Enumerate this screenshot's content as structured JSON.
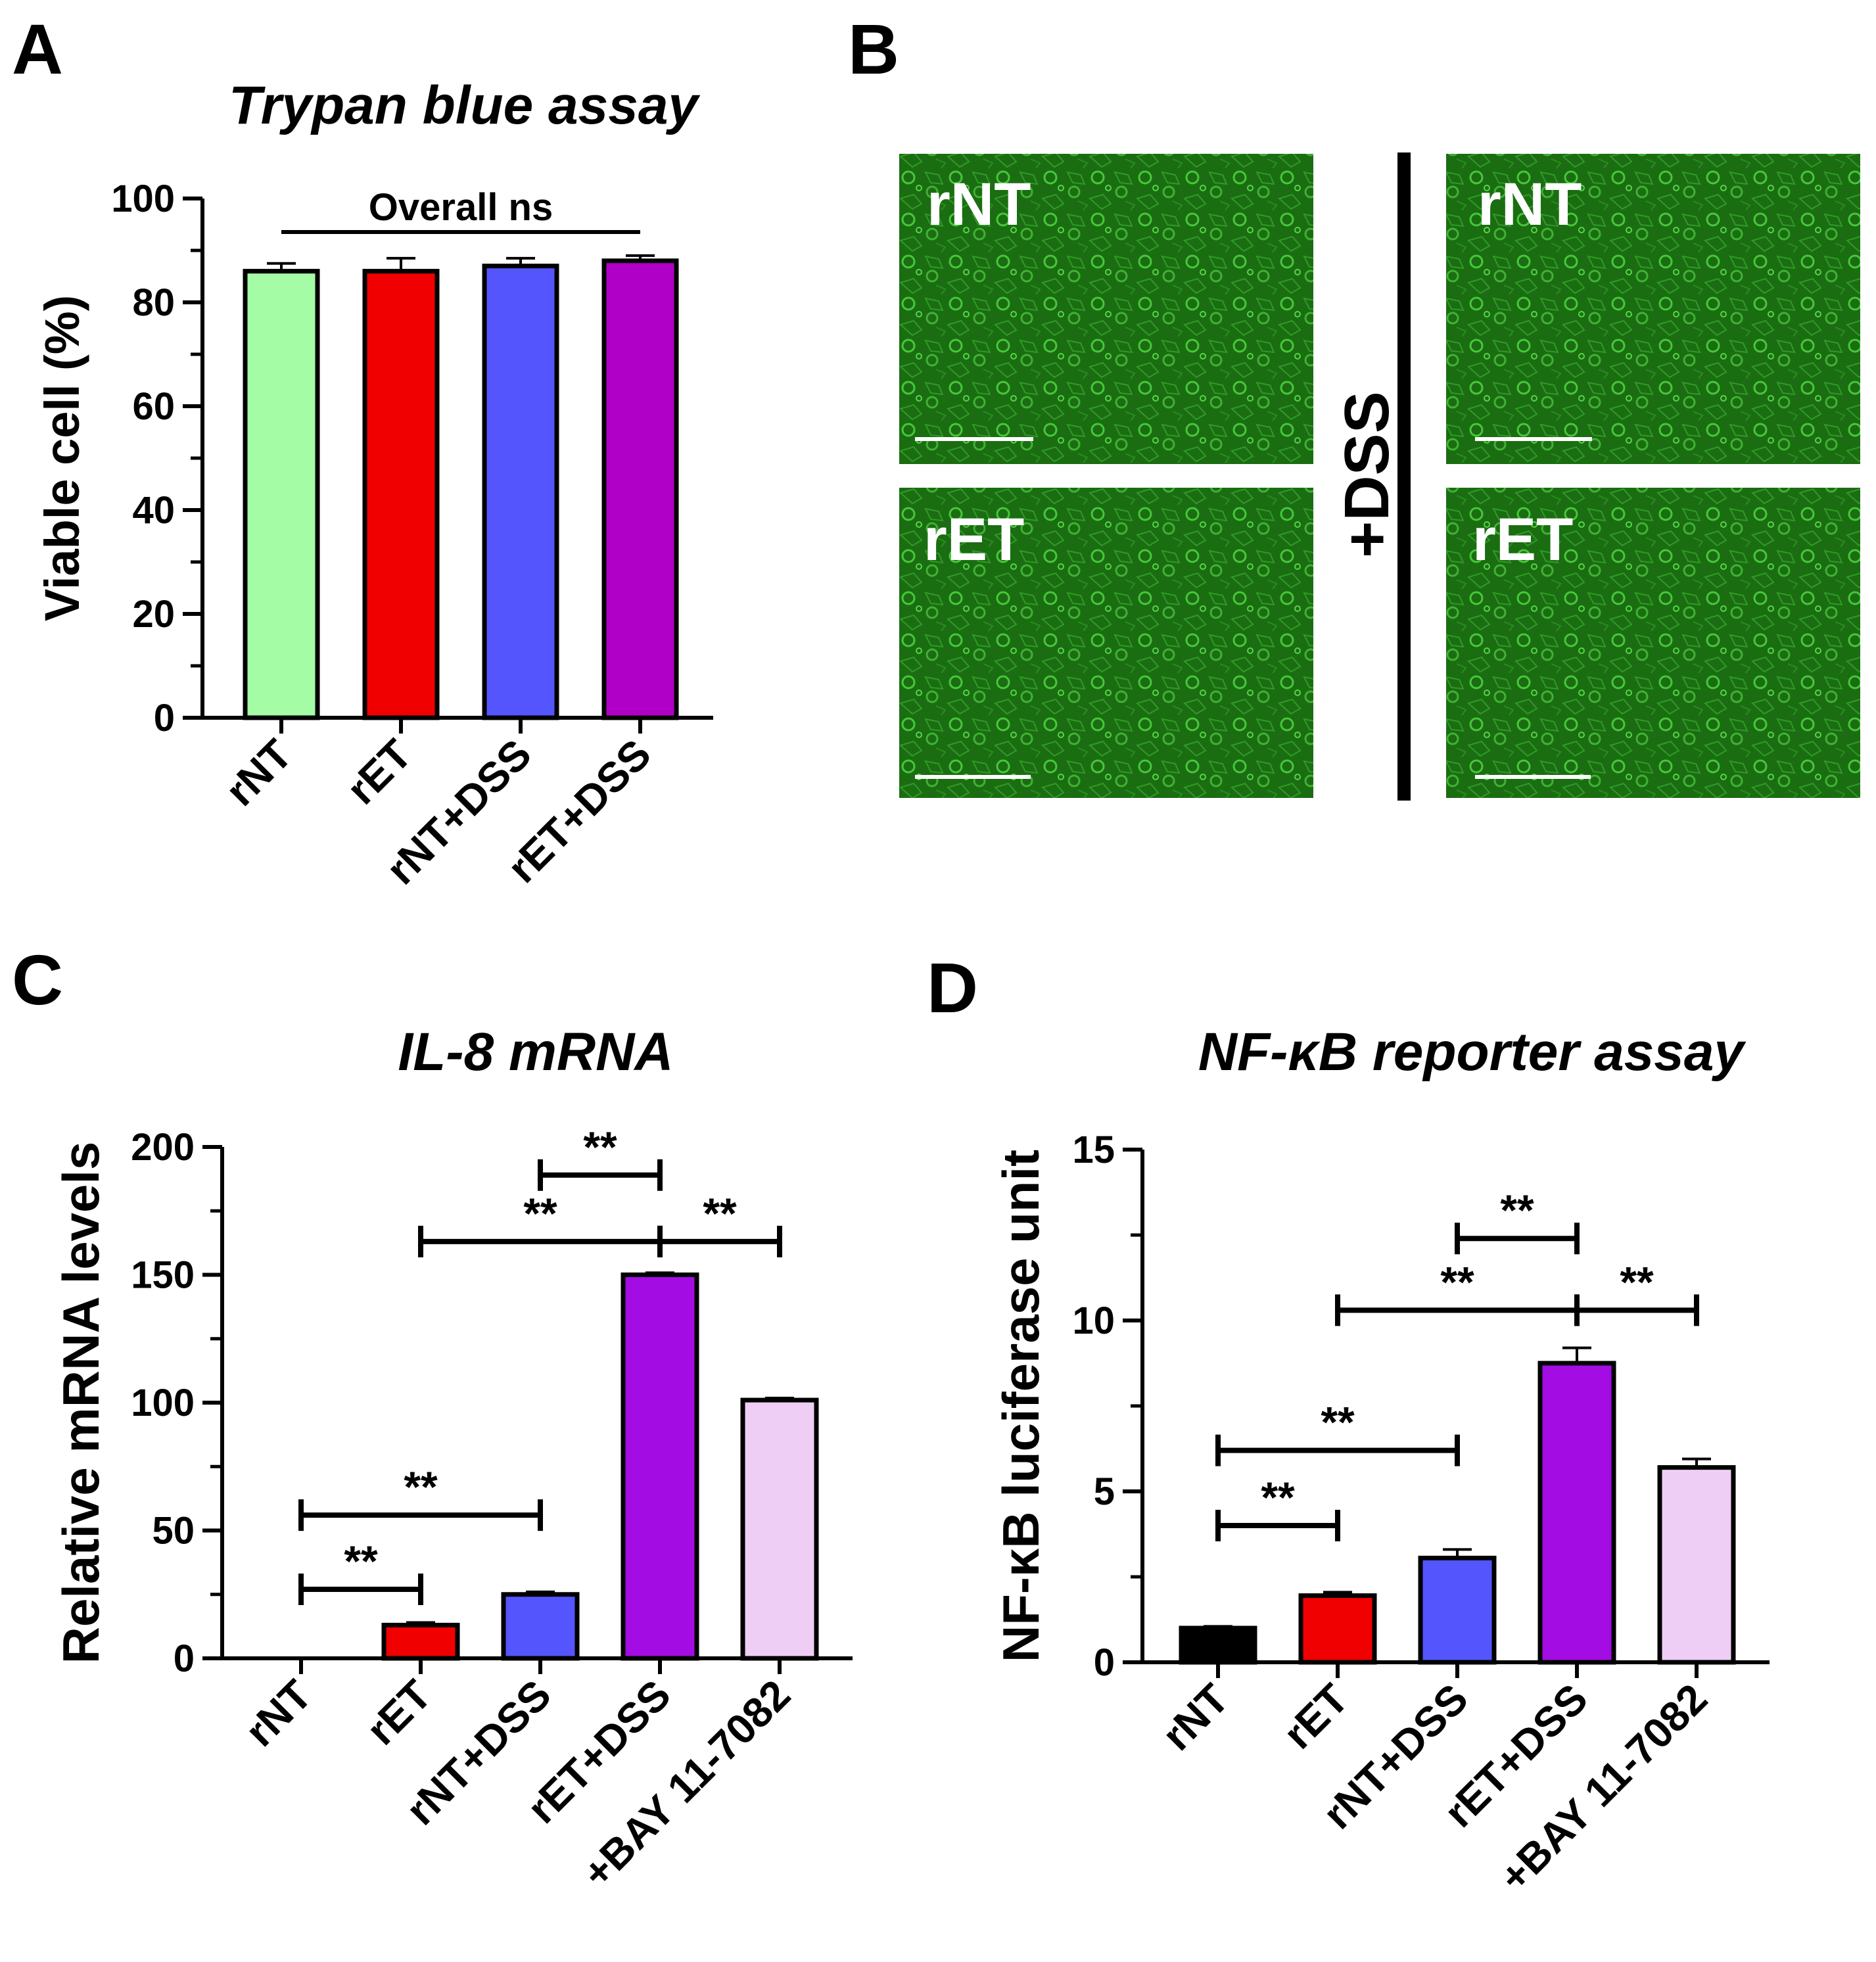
{
  "panels": {
    "A": {
      "letter": "A",
      "chart_data": {
        "type": "bar",
        "title": "Trypan blue assay",
        "ylabel": "Viable cell  (%)",
        "ylim": [
          0,
          100
        ],
        "yticks": [
          0,
          20,
          40,
          60,
          80,
          100
        ],
        "categories": [
          "rNT",
          "rET",
          "rNT+DSS",
          "rET+DSS"
        ],
        "values": [
          86,
          86,
          87,
          88
        ],
        "errors": [
          1.5,
          2.5,
          1.5,
          1.0
        ],
        "colors": [
          "#a4fca4",
          "#f00000",
          "#5555fd",
          "#b000c8"
        ],
        "annotations": [
          {
            "text": "Overall ns",
            "from": 0,
            "to": 3
          }
        ]
      }
    },
    "B": {
      "letter": "B",
      "side_label": "+DSS",
      "images": [
        {
          "label": "rNT"
        },
        {
          "label": "rET"
        },
        {
          "label": "rNT"
        },
        {
          "label": "rET"
        }
      ],
      "colors": {
        "tile": "#1b6d12",
        "cell": "#46c83a"
      }
    },
    "C": {
      "letter": "C",
      "chart_data": {
        "type": "bar",
        "title": "IL-8 mRNA",
        "ylabel": "Relative mRNA levels",
        "ylim": [
          0,
          200
        ],
        "yticks": [
          0,
          50,
          100,
          150,
          200
        ],
        "categories": [
          "rNT",
          "rET",
          "rNT+DSS",
          "rET+DSS",
          "+BAY 11-7082"
        ],
        "values": [
          0,
          13,
          25,
          150,
          101
        ],
        "errors": [
          0,
          1,
          1,
          0.8,
          0.8
        ],
        "colors": [
          "#ffffff",
          "#f00000",
          "#5555fd",
          "#a40ce4",
          "#efcef5"
        ],
        "significance": [
          {
            "from": 0,
            "to": 1,
            "y": 27,
            "text": "**"
          },
          {
            "from": 0,
            "to": 2,
            "y": 56,
            "text": "**"
          },
          {
            "from": 1,
            "to": 3,
            "y": 163,
            "text": "**"
          },
          {
            "from": 2,
            "to": 3,
            "y": 189,
            "text": "**"
          },
          {
            "from": 3,
            "to": 4,
            "y": 163,
            "text": "**"
          }
        ]
      }
    },
    "D": {
      "letter": "D",
      "chart_data": {
        "type": "bar",
        "title": "NF-κB reporter assay",
        "ylabel": "NF-κB luciferase unit",
        "ylim": [
          0,
          15
        ],
        "yticks": [
          0,
          5,
          10,
          15
        ],
        "categories": [
          "rNT",
          "rET",
          "rNT+DSS",
          "rET+DSS",
          "+BAY 11-7082"
        ],
        "values": [
          1,
          1.95,
          3.05,
          8.75,
          5.7
        ],
        "errors": [
          0.05,
          0.1,
          0.25,
          0.45,
          0.25
        ],
        "colors": [
          "#000000",
          "#f00000",
          "#5555fd",
          "#a40ce4",
          "#efcef5"
        ],
        "significance": [
          {
            "from": 0,
            "to": 1,
            "y": 4,
            "text": "**"
          },
          {
            "from": 0,
            "to": 2,
            "y": 6.2,
            "text": "**"
          },
          {
            "from": 1,
            "to": 3,
            "y": 10.3,
            "text": "**"
          },
          {
            "from": 2,
            "to": 3,
            "y": 12.4,
            "text": "**"
          },
          {
            "from": 3,
            "to": 4,
            "y": 10.3,
            "text": "**"
          }
        ]
      }
    }
  }
}
